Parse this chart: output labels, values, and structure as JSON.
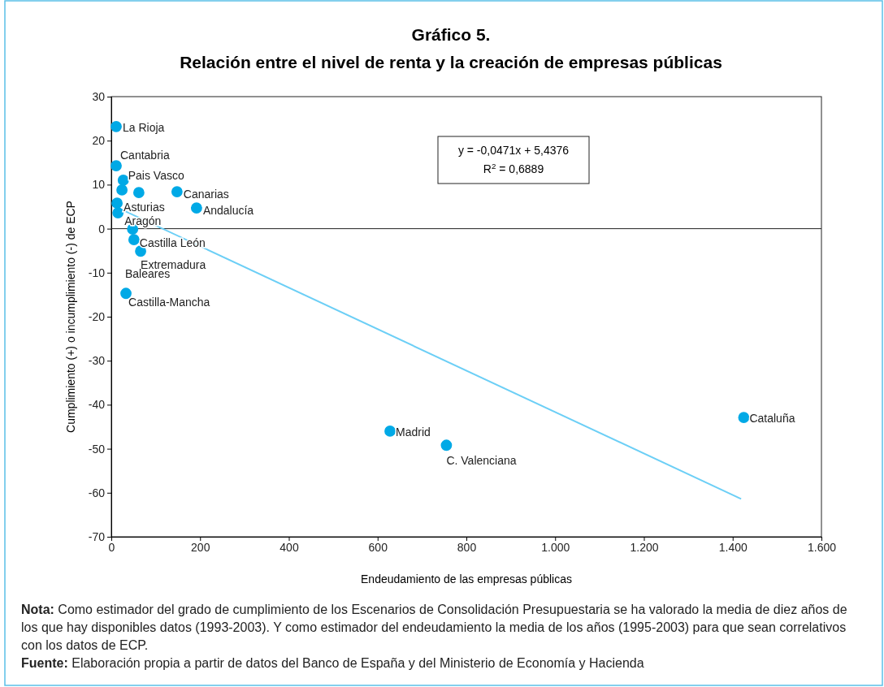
{
  "chart_data": {
    "type": "scatter",
    "title": "Gráfico 5.",
    "subtitle": "Relación entre el nivel de renta y la creación de empresas públicas",
    "xlabel": "Endeudamiento de las empresas públicas",
    "ylabel": "Cumplimiento (+) o incumplimiento (-) de ECP",
    "xlim": [
      0,
      1600
    ],
    "ylim": [
      -70,
      30
    ],
    "xticks": [
      {
        "value": 0,
        "label": "0"
      },
      200,
      400,
      600,
      800,
      {
        "value": 1000,
        "label": "1.000"
      },
      {
        "value": 1200,
        "label": "1.200"
      },
      {
        "value": 1400,
        "label": "1.400"
      },
      {
        "value": 1600,
        "label": "1.600"
      }
    ],
    "yticks": [
      -70,
      -60,
      -50,
      -40,
      -30,
      -20,
      -10,
      0,
      10,
      20,
      30
    ],
    "ref_lines": [
      {
        "axis": "y",
        "value": 0
      }
    ],
    "series": [
      {
        "color": "#00a9e6",
        "marker": "circle",
        "x": [
          11,
          11,
          27,
          24,
          62,
          13,
          15,
          148,
          192,
          48,
          51,
          66,
          33,
          628,
          755,
          1425
        ],
        "values": [
          23.2,
          14.3,
          11,
          8.8,
          8.2,
          5.8,
          3.6,
          8.4,
          4.7,
          -0.1,
          -2.5,
          -5.1,
          -14.7,
          -46,
          -49.2,
          -42.9
        ]
      },
      {
        "type": "line",
        "color": "#6ccff6",
        "x": [
          5,
          1419
        ],
        "values": [
          5.2,
          -61.4
        ]
      }
    ],
    "annotations": [
      {
        "text": "La Rioja",
        "x": 11,
        "y": 23.2
      },
      {
        "text": "Cantabria",
        "x": 11,
        "y": 14.3
      },
      {
        "text": "Pais Vasco",
        "x": 27,
        "y": 11
      },
      {
        "text": "Canarias",
        "x": 148,
        "y": 8.4
      },
      {
        "text": "Andalucía",
        "x": 192,
        "y": 4.7
      },
      {
        "text": "Asturias",
        "x": 13,
        "y": 5.8
      },
      {
        "text": "Aragón",
        "x": 15,
        "y": 3.6
      },
      {
        "text": "Castilla León",
        "x": 51,
        "y": -2.5
      },
      {
        "text": "Extremadura",
        "x": 66,
        "y": -5.1
      },
      "Baleares",
      {
        "text": "Castilla-Mancha",
        "x": 33,
        "y": -14.7
      },
      {
        "text": "Madrid",
        "x": 628,
        "y": -46
      },
      {
        "text": "C. Valenciana",
        "x": 755,
        "y": -49.2
      },
      {
        "text": "Cataluña",
        "x": 1425,
        "y": -42.9
      },
      "y = -0,0471x + 5,4376",
      "R$^{2}$ = 0,6889",
      "Nota: Como estimador del grado de cumplimiento de los Escenarios de Consolidación Presupuestaria se ha valorado la media de diez años de los que hay disponibles datos (1993-2003). Y como estimador del endeudamiento la media de los años (1995-2003) para que sean correlativos con los datos de ECP.",
      "Fuente: Elaboración propia a partir de datos del Banco de España y del Ministerio de Economía y Hacienda"
    ]
  }
}
